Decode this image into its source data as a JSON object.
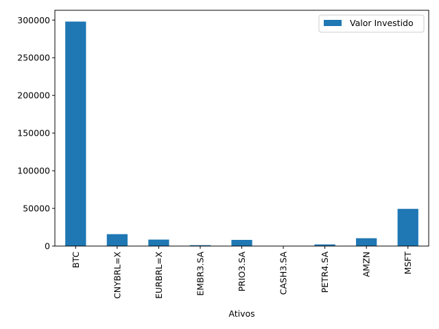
{
  "chart_data": {
    "type": "bar",
    "xlabel": "Ativos",
    "ylabel": "",
    "categories": [
      "BTC",
      "CNYBRL=X",
      "EURBRL=X",
      "EMBR3.SA",
      "PRIO3.SA",
      "CASH3.SA",
      "PETR4.SA",
      "AMZN",
      "MSFT"
    ],
    "series": [
      {
        "name": "Valor Investido",
        "values": [
          298000,
          15800,
          8600,
          1200,
          8200,
          300,
          2200,
          10400,
          49400
        ]
      }
    ],
    "ylim": [
      0,
      313000
    ],
    "yticks": [
      0,
      50000,
      100000,
      150000,
      200000,
      250000,
      300000
    ],
    "legend": "top-right",
    "grid": false,
    "colors": {
      "bar": "#1f77b4"
    }
  }
}
